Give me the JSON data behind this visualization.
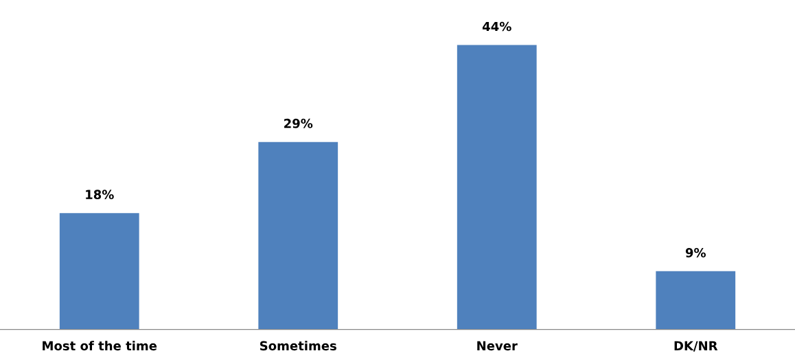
{
  "chart_data": {
    "type": "bar",
    "categories": [
      "Most of the time",
      "Sometimes",
      "Never",
      "DK/NR"
    ],
    "values": [
      18,
      29,
      44,
      9
    ],
    "value_labels": [
      "18%",
      "29%",
      "44%",
      "9%"
    ],
    "color": "#4f81bd",
    "grid": false,
    "legend": false
  }
}
